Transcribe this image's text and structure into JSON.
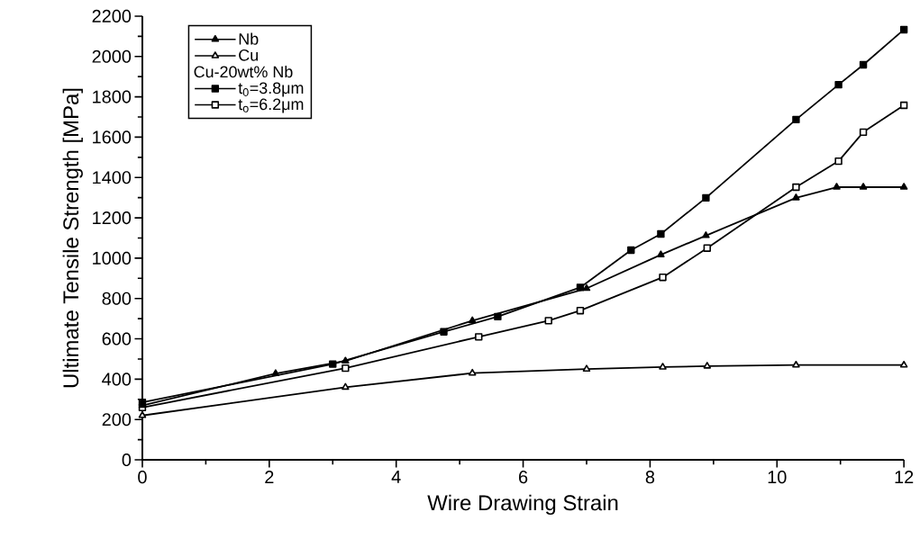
{
  "chart_data": {
    "type": "line",
    "xlabel": "Wire Drawing Strain",
    "ylabel": "Ultimate Tensile Strength [MPa]",
    "legend_title": "Cu-20wt% Nb",
    "xlim": [
      0,
      12
    ],
    "xticks": [
      0,
      2,
      4,
      6,
      8,
      10,
      12
    ],
    "ylim": [
      0,
      2200
    ],
    "yticks": [
      0,
      200,
      400,
      600,
      800,
      1000,
      1200,
      1400,
      1600,
      1800,
      2000,
      2200
    ],
    "grid": false,
    "legend": "top left",
    "line_style": "solid",
    "series": [
      {
        "name": "Nb",
        "color": "#000000",
        "marker": "triangle",
        "x": [
          0,
          2.1,
          3.2,
          5.2,
          7.0,
          8.17,
          8.88,
          10.3,
          10.94,
          11.36,
          12
        ],
        "values": [
          270,
          428,
          490,
          690,
          850,
          1017,
          1112,
          1299,
          1352,
          1352,
          1352
        ]
      },
      {
        "name": "Cu",
        "color": "#000000",
        "marker": "triangle",
        "x": [
          0,
          3.2,
          5.2,
          7.0,
          8.2,
          8.9,
          10.3,
          12
        ],
        "values": [
          220,
          360,
          430,
          450,
          460,
          465,
          470,
          470
        ]
      },
      {
        "name": "t$_{0}$=3.8μm",
        "color": "#000000",
        "marker": "square",
        "x": [
          0,
          3.0,
          4.75,
          5.6,
          6.9,
          7.7,
          8.17,
          8.88,
          10.3,
          10.97,
          11.36,
          12
        ],
        "values": [
          285,
          475,
          635,
          710,
          855,
          1040,
          1120,
          1299,
          1687,
          1860,
          1959,
          2133
        ]
      },
      {
        "name": "t$_{o}$=6.2μm",
        "color": "#000000",
        "marker": "square",
        "x": [
          0,
          3.2,
          5.3,
          6.4,
          6.9,
          8.2,
          8.9,
          10.3,
          10.97,
          11.36,
          12
        ],
        "values": [
          260,
          455,
          610,
          690,
          740,
          905,
          1050,
          1352,
          1481,
          1625,
          1758
        ]
      }
    ]
  }
}
